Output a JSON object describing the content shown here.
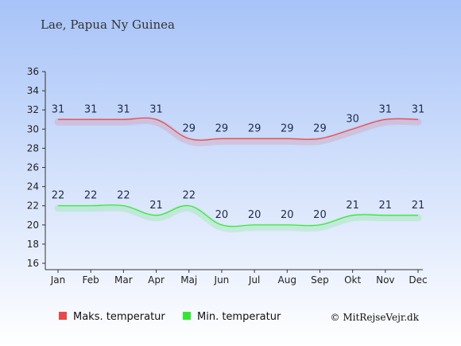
{
  "chart_data": {
    "type": "line",
    "title": "Lae, Papua Ny Guinea",
    "categories": [
      "Jan",
      "Feb",
      "Mar",
      "Apr",
      "Maj",
      "Jun",
      "Jul",
      "Aug",
      "Sep",
      "Okt",
      "Nov",
      "Dec"
    ],
    "ylim": [
      16,
      36
    ],
    "yticks": [
      16,
      18,
      20,
      22,
      24,
      26,
      28,
      30,
      32,
      34,
      36
    ],
    "series": [
      {
        "name": "Maks. temperatur",
        "color": "#e8484a",
        "values": [
          31,
          31,
          31,
          31,
          29,
          29,
          29,
          29,
          29,
          30,
          31,
          31
        ]
      },
      {
        "name": "Min. temperatur",
        "color": "#33e833",
        "values": [
          22,
          22,
          22,
          21,
          22,
          20,
          20,
          20,
          20,
          21,
          21,
          21
        ]
      }
    ],
    "legend_position": "bottom-left",
    "credit": "© MitRejseVejr.dk"
  },
  "colors": {
    "background_top": "#a7c3f8",
    "background_bottom": "#ffffff"
  }
}
